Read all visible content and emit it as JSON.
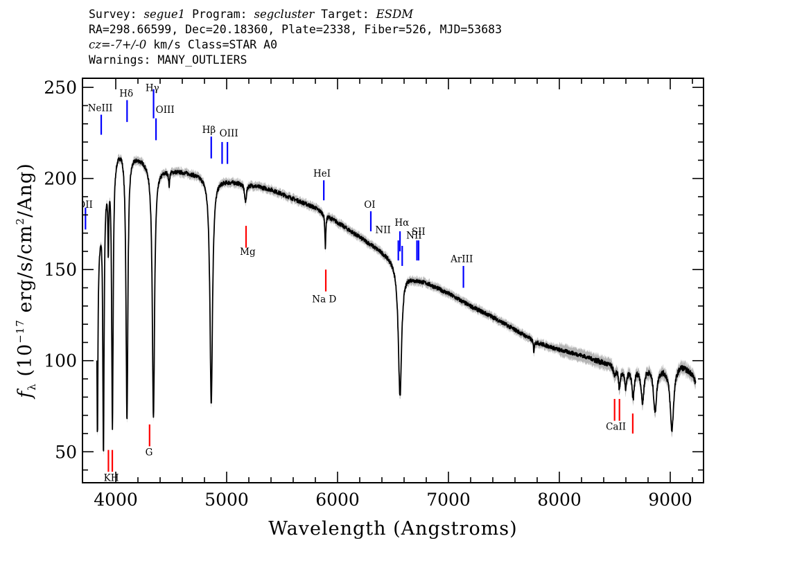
{
  "header": {
    "line1": {
      "survey_label": "Survey: ",
      "survey": "segue1",
      "program_label": " Program: ",
      "program": "segcluster",
      "target_label": " Target: ",
      "target": "ESDM"
    },
    "line2": "RA=298.66599, Dec=20.18360, Plate=2338, Fiber=526, MJD=53683",
    "line3": {
      "cz": "cz=-7+/-0",
      "rest": " km/s Class=STAR A0"
    },
    "line4": "Warnings: MANY_OUTLIERS"
  },
  "chart_data": {
    "type": "line",
    "xlabel": "Wavelength (Angstroms)",
    "ylabel": "f_λ (10^-17 erg/s/cm^2/Ang)",
    "xlim": [
      3700,
      9300
    ],
    "ylim": [
      33,
      255
    ],
    "xticks": [
      4000,
      5000,
      6000,
      7000,
      8000,
      9000
    ],
    "yticks": [
      50,
      100,
      150,
      200,
      250
    ],
    "colors": {
      "spectrum": "#000000",
      "error_band": "#b4b4b4",
      "emission": "#0000ff",
      "absorption": "#ff0000"
    },
    "continuum": [
      [
        3830,
        150
      ],
      [
        3880,
        190
      ],
      [
        3950,
        212
      ],
      [
        4050,
        218
      ],
      [
        4150,
        214
      ],
      [
        4250,
        211
      ],
      [
        4350,
        206
      ],
      [
        4450,
        205
      ],
      [
        4600,
        204
      ],
      [
        4800,
        202
      ],
      [
        5000,
        199
      ],
      [
        5200,
        197
      ],
      [
        5400,
        194
      ],
      [
        5600,
        189
      ],
      [
        5800,
        184
      ],
      [
        6000,
        176
      ],
      [
        6200,
        168
      ],
      [
        6400,
        160
      ],
      [
        6540,
        154
      ],
      [
        6620,
        148
      ],
      [
        6700,
        145
      ],
      [
        6800,
        143
      ],
      [
        7000,
        137
      ],
      [
        7200,
        130
      ],
      [
        7400,
        124
      ],
      [
        7600,
        117
      ],
      [
        7800,
        110
      ],
      [
        8000,
        106
      ],
      [
        8200,
        103
      ],
      [
        8400,
        99
      ],
      [
        8600,
        96
      ],
      [
        8800,
        97
      ],
      [
        9000,
        96
      ],
      [
        9100,
        98
      ],
      [
        9200,
        93
      ],
      [
        9230,
        88
      ]
    ],
    "absorption_features": [
      {
        "center": 3835,
        "depth": 92,
        "width": 5
      },
      {
        "center": 3889,
        "depth": 142,
        "width": 7
      },
      {
        "center": 3933,
        "depth": 40,
        "width": 5
      },
      {
        "center": 3970,
        "depth": 148,
        "width": 8
      },
      {
        "center": 4101,
        "depth": 148,
        "width": 10
      },
      {
        "center": 4340,
        "depth": 138,
        "width": 12
      },
      {
        "center": 4481,
        "depth": 8,
        "width": 5
      },
      {
        "center": 4861,
        "depth": 124,
        "width": 14
      },
      {
        "center": 5170,
        "depth": 10,
        "width": 10
      },
      {
        "center": 5890,
        "depth": 18,
        "width": 5
      },
      {
        "center": 6563,
        "depth": 72,
        "width": 18
      },
      {
        "center": 7770,
        "depth": 6,
        "width": 5
      },
      {
        "center": 8498,
        "depth": 6,
        "width": 10
      },
      {
        "center": 8542,
        "depth": 12,
        "width": 10
      },
      {
        "center": 8598,
        "depth": 10,
        "width": 12
      },
      {
        "center": 8665,
        "depth": 16,
        "width": 13
      },
      {
        "center": 8750,
        "depth": 19,
        "width": 15
      },
      {
        "center": 8863,
        "depth": 24,
        "width": 17
      },
      {
        "center": 9015,
        "depth": 34,
        "width": 19
      }
    ],
    "emission_lines": [
      {
        "label": "OII",
        "x": 3727,
        "y_low": 172,
        "y_high": 184
      },
      {
        "label": "NeIII",
        "x": 3869,
        "y_low": 224,
        "y_high": 235
      },
      {
        "label": "Hδ",
        "x": 4102,
        "y_low": 231,
        "y_high": 243
      },
      {
        "label": "Hγ",
        "x": 4341,
        "y_low": 233,
        "y_high": 249
      },
      {
        "label": "OIII",
        "x": 4363,
        "y_low": 221,
        "y_high": 233
      },
      {
        "label": "Hβ",
        "x": 4861,
        "y_low": 211,
        "y_high": 223
      },
      {
        "label": "OIII",
        "x": 4959,
        "y_low": 208,
        "y_high": 220
      },
      {
        "label": "OIII",
        "x": 5007,
        "y_low": 208,
        "y_high": 220
      },
      {
        "label": "HeI",
        "x": 5876,
        "y_low": 188,
        "y_high": 199
      },
      {
        "label": "OI",
        "x": 6300,
        "y_low": 171,
        "y_high": 182
      },
      {
        "label": "NII",
        "x": 6548,
        "y_low": 155,
        "y_high": 166
      },
      {
        "label": "Hα",
        "x": 6563,
        "y_low": 160,
        "y_high": 171
      },
      {
        "label": "NII",
        "x": 6583,
        "y_low": 152,
        "y_high": 163
      },
      {
        "label": "SII",
        "x": 6716,
        "y_low": 155,
        "y_high": 166
      },
      {
        "label": "SII",
        "x": 6731,
        "y_low": 155,
        "y_high": 166
      },
      {
        "label": "ArIII",
        "x": 7135,
        "y_low": 140,
        "y_high": 152
      }
    ],
    "absorption_lines": [
      {
        "label": "K",
        "x": 3934,
        "y_low": 39,
        "y_high": 51
      },
      {
        "label": "H",
        "x": 3969,
        "y_low": 39,
        "y_high": 51
      },
      {
        "label": "G",
        "x": 4305,
        "y_low": 53,
        "y_high": 65
      },
      {
        "label": "Mg",
        "x": 5175,
        "y_low": 162,
        "y_high": 174
      },
      {
        "label": "Na  D",
        "x": 5894,
        "y_low": 138,
        "y_high": 150
      },
      {
        "label": "CaII",
        "x": 8498,
        "y_low": 67,
        "y_high": 79
      },
      {
        "label": "CaII",
        "x": 8542,
        "y_low": 67,
        "y_high": 79
      },
      {
        "label": "CaII",
        "x": 8662,
        "y_low": 60,
        "y_high": 71
      }
    ],
    "emission_labels": [
      {
        "text": "OII",
        "x": 3725,
        "y": 184
      },
      {
        "text": "NeIII",
        "x": 3860,
        "y": 237
      },
      {
        "text": "Hδ",
        "x": 4095,
        "y": 245
      },
      {
        "text": "Hγ",
        "x": 4330,
        "y": 248
      },
      {
        "text": "OIII",
        "x": 4445,
        "y": 236
      },
      {
        "text": "Hβ",
        "x": 4840,
        "y": 225
      },
      {
        "text": "OIII",
        "x": 5020,
        "y": 223
      },
      {
        "text": "HeI",
        "x": 5860,
        "y": 201
      },
      {
        "text": "OI",
        "x": 6290,
        "y": 184
      },
      {
        "text": "NII",
        "x": 6410,
        "y": 170
      },
      {
        "text": "Hα",
        "x": 6580,
        "y": 174
      },
      {
        "text": "NII",
        "x": 6690,
        "y": 167
      },
      {
        "text": "SII",
        "x": 6730,
        "y": 169
      },
      {
        "text": "ArIII",
        "x": 7120,
        "y": 154
      }
    ],
    "absorption_labels": [
      {
        "text": "KH",
        "x": 3960,
        "y": 34
      },
      {
        "text": "G",
        "x": 4300,
        "y": 48
      },
      {
        "text": "Mg",
        "x": 5190,
        "y": 158
      },
      {
        "text": "Na  D",
        "x": 5880,
        "y": 132
      },
      {
        "text": "CaII",
        "x": 8510,
        "y": 62
      }
    ]
  }
}
